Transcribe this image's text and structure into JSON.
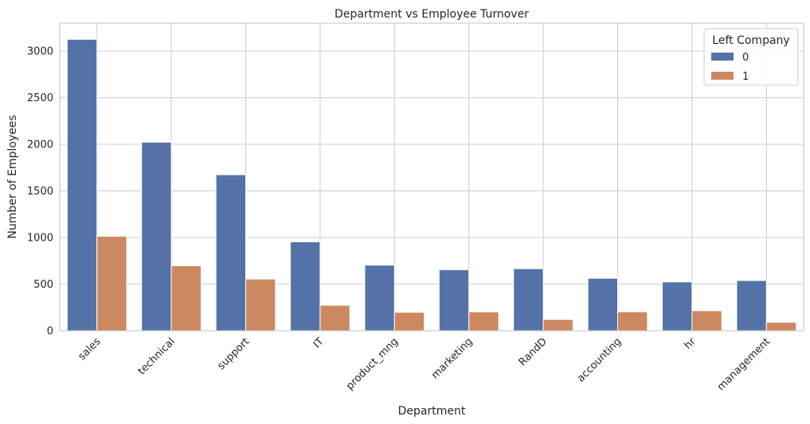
{
  "chart_data": {
    "type": "bar",
    "title": "Department vs Employee Turnover",
    "xlabel": "Department",
    "ylabel": "Number of Employees",
    "ylim": [
      0,
      3300
    ],
    "yticks": [
      0,
      500,
      1000,
      1500,
      2000,
      2500,
      3000
    ],
    "grid": true,
    "legend": {
      "title": "Left Company",
      "placement": "top-right"
    },
    "categories": [
      "sales",
      "technical",
      "support",
      "IT",
      "product_mng",
      "marketing",
      "RandD",
      "accounting",
      "hr",
      "management"
    ],
    "series": [
      {
        "name": "0",
        "color": "#5572a8",
        "values": [
          3126,
          2023,
          1674,
          954,
          704,
          655,
          666,
          563,
          524,
          539
        ]
      },
      {
        "name": "1",
        "color": "#cc8860",
        "values": [
          1014,
          697,
          555,
          273,
          198,
          203,
          121,
          204,
          215,
          91
        ]
      }
    ]
  }
}
